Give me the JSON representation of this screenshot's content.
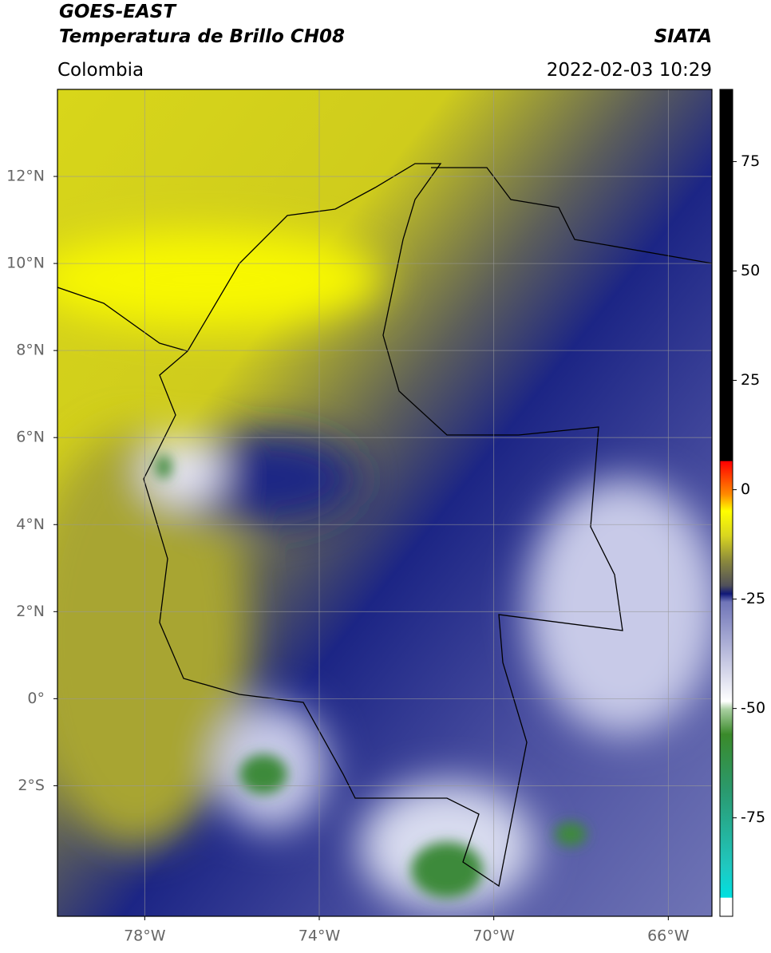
{
  "header": {
    "source": "GOES-EAST",
    "title": "Temperatura de Brillo CH08",
    "agency": "SIATA",
    "region": "Colombia",
    "datetime": "2022-02-03 10:29"
  },
  "map": {
    "xlim": [
      -80,
      -65
    ],
    "ylim": [
      -5,
      14
    ],
    "xticks": [
      {
        "value": -78,
        "label": "78°W"
      },
      {
        "value": -74,
        "label": "74°W"
      },
      {
        "value": -70,
        "label": "70°W"
      },
      {
        "value": -66,
        "label": "66°W"
      }
    ],
    "yticks": [
      {
        "value": 12,
        "label": "12°N"
      },
      {
        "value": 10,
        "label": "10°N"
      },
      {
        "value": 8,
        "label": "8°N"
      },
      {
        "value": 6,
        "label": "6°N"
      },
      {
        "value": 4,
        "label": "4°N"
      },
      {
        "value": 2,
        "label": "2°N"
      },
      {
        "value": 0,
        "label": "0°"
      },
      {
        "value": -2,
        "label": "2°S"
      }
    ],
    "grid": true
  },
  "colorbar": {
    "lim": [
      -97.5,
      91.5
    ],
    "ticks": [
      75,
      50,
      25,
      0,
      -25,
      -50,
      -75
    ]
  }
}
